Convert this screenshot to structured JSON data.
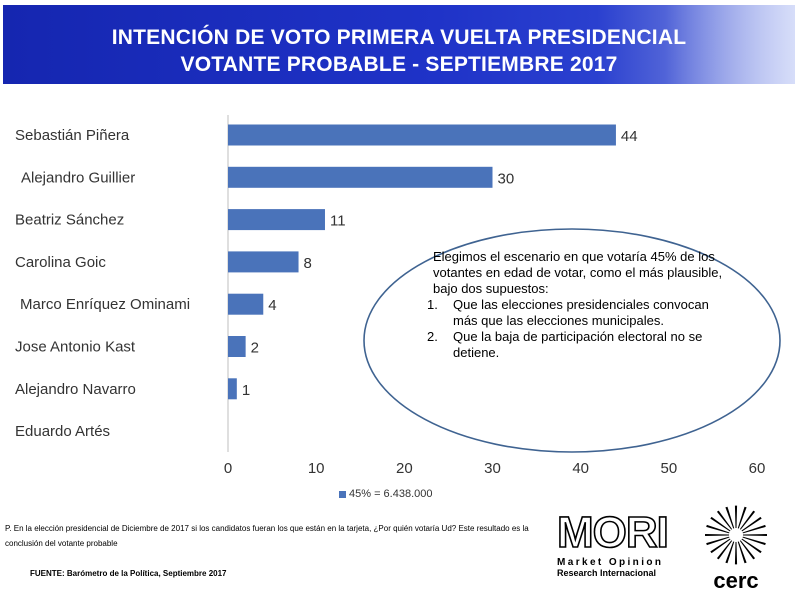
{
  "header": {
    "title_line1": "INTENCIÓN DE VOTO PRIMERA VUELTA PRESIDENCIAL",
    "title_line2": "VOTANTE PROBABLE - SEPTIEMBRE 2017",
    "background_color": "#1f33c8"
  },
  "chart_data": {
    "type": "bar",
    "orientation": "horizontal",
    "categories": [
      "Sebastián Piñera",
      "Alejandro Guillier",
      "Beatriz Sánchez",
      "Carolina Goic",
      "Marco Enríquez Ominami",
      "Jose Antonio Kast",
      "Alejandro Navarro",
      "Eduardo Artés"
    ],
    "series": [
      {
        "name": "45% = 6.438.000",
        "values": [
          44,
          30,
          11,
          8,
          4,
          2,
          1,
          0
        ],
        "color": "#4a73ba"
      }
    ],
    "data_labels": [
      "44",
      "30",
      "11",
      "8",
      "4",
      "2",
      "1",
      ""
    ],
    "x_ticks": [
      0,
      10,
      20,
      30,
      40,
      50,
      60
    ],
    "xlim": [
      0,
      60
    ],
    "legend_position": "bottom",
    "grid": false
  },
  "note": {
    "intro": "Elegimos el escenario en que votaría 45% de los votantes en edad de votar, como el más plausible, bajo dos supuestos:",
    "items": [
      {
        "num": "1.",
        "text": "Que las elecciones presidenciales convocan más que las elecciones municipales."
      },
      {
        "num": "2.",
        "text": "Que la baja de participación electoral no se detiene."
      }
    ]
  },
  "footer": {
    "question": "P. En la elección presidencial de Diciembre de 2017 si los candidatos fueran los que están en la tarjeta, ¿Por quién votaría Ud? Este resultado es la conclusión del votante probable",
    "source": "FUENTE: Barómetro de la Política, Septiembre 2017"
  },
  "logos": {
    "mori_word": "MORI",
    "mori_line1": "Market Opinion",
    "mori_line2": "Research Internacional",
    "cerc_word": "cerc"
  }
}
